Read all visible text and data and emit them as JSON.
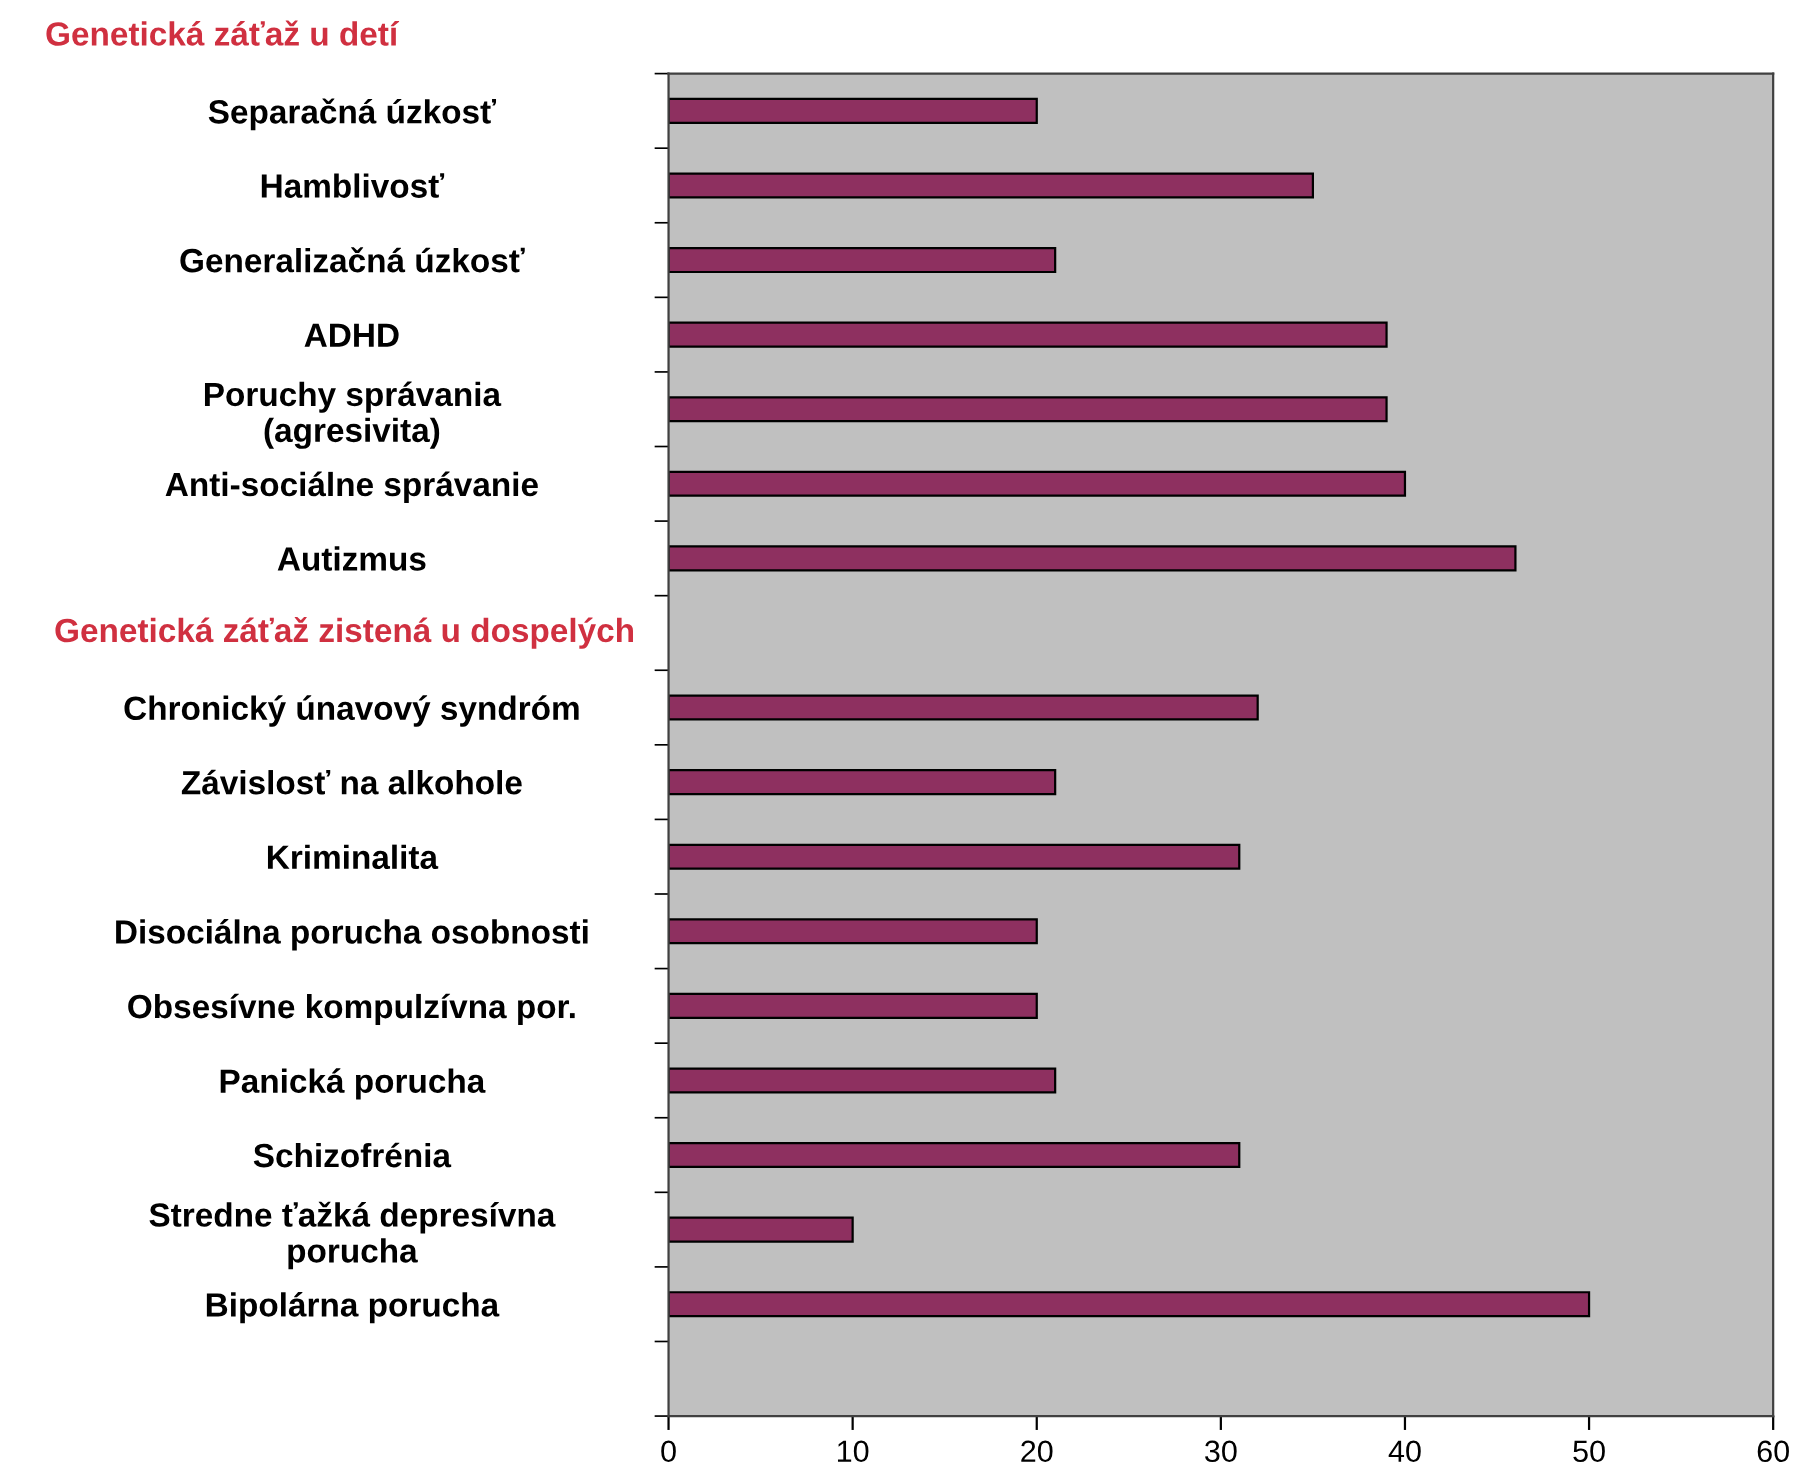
{
  "chart_data": {
    "type": "bar",
    "orientation": "horizontal",
    "categories": [
      "Separačná úzkosť",
      "Hamblivosť",
      "Generalizačná úzkosť",
      "ADHD",
      "Poruchy správania\n(agresivita)",
      "Anti-sociálne správanie",
      "Autizmus",
      null,
      "Chronický únavový syndróm",
      "Závislosť na alkohole",
      "Kriminalita",
      "Disociálna porucha osobnosti",
      "Obsesívne kompulzívna por.",
      "Panická porucha",
      "Schizofrénia",
      "Stredne ťažká depresívna\nporucha",
      "Bipolárna porucha",
      null
    ],
    "values": [
      20,
      35,
      21,
      39,
      39,
      40,
      46,
      null,
      32,
      21,
      31,
      20,
      20,
      21,
      31,
      10,
      50,
      null
    ],
    "color": "#8e3060",
    "xlim": [
      0,
      60
    ],
    "xticks": [
      0,
      10,
      20,
      30,
      40,
      50,
      60
    ],
    "annotations": [
      "Genetická záťaž u detí",
      "Genetická záťaž zistená u dospelých"
    ],
    "grid": false,
    "legend": false
  }
}
